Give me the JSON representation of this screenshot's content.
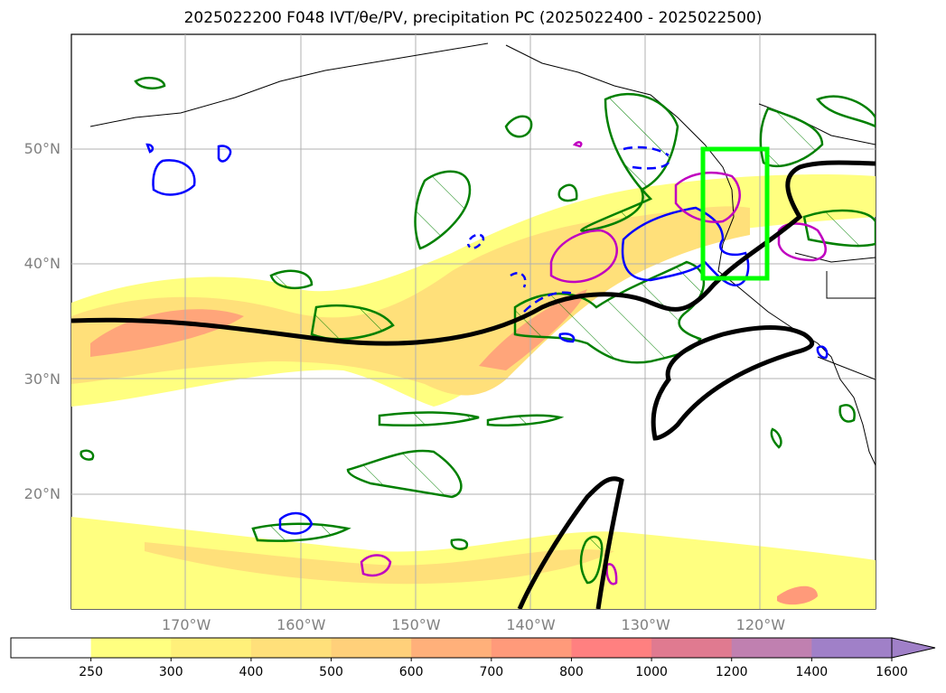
{
  "title": "2025022200 F048 IVT/θe/PV, precipitation PC (2025022400 - 2025022500)",
  "map": {
    "lat_labels": [
      {
        "text": "50°N",
        "lat": 50
      },
      {
        "text": "40°N",
        "lat": 40
      },
      {
        "text": "30°N",
        "lat": 30
      },
      {
        "text": "20°N",
        "lat": 20
      }
    ],
    "lon_labels": [
      {
        "text": "170°W",
        "lon": -170
      },
      {
        "text": "160°W",
        "lon": -160
      },
      {
        "text": "150°W",
        "lon": -150
      },
      {
        "text": "140°W",
        "lon": -140
      },
      {
        "text": "130°W",
        "lon": -130
      },
      {
        "text": "120°W",
        "lon": -120
      }
    ],
    "extent": {
      "lon_min": -180,
      "lon_max": -110,
      "lat_min": 10,
      "lat_max": 60
    },
    "highlight_box": {
      "lon_min": -125,
      "lon_max": -119.5,
      "lat_min": 38.8,
      "lat_max": 50,
      "color": "#00ff00"
    },
    "colors": {
      "ivt_contour": "#000000",
      "pv_contour": "#008000",
      "theta_solid": "#0000ff",
      "precip_contour": "#c000c0",
      "highlight": "#00ff00"
    }
  },
  "colorbar": {
    "ticks": [
      "250",
      "300",
      "400",
      "500",
      "600",
      "700",
      "800",
      "1000",
      "1200",
      "1400",
      "1600"
    ],
    "colors": [
      "#ffffff",
      "#ffff80",
      "#fff07a",
      "#ffe07a",
      "#ffd07a",
      "#ffb07a",
      "#ff9a7a",
      "#ff8080",
      "#e07a90",
      "#c080b0",
      "#a080c8"
    ],
    "extend": "max"
  }
}
